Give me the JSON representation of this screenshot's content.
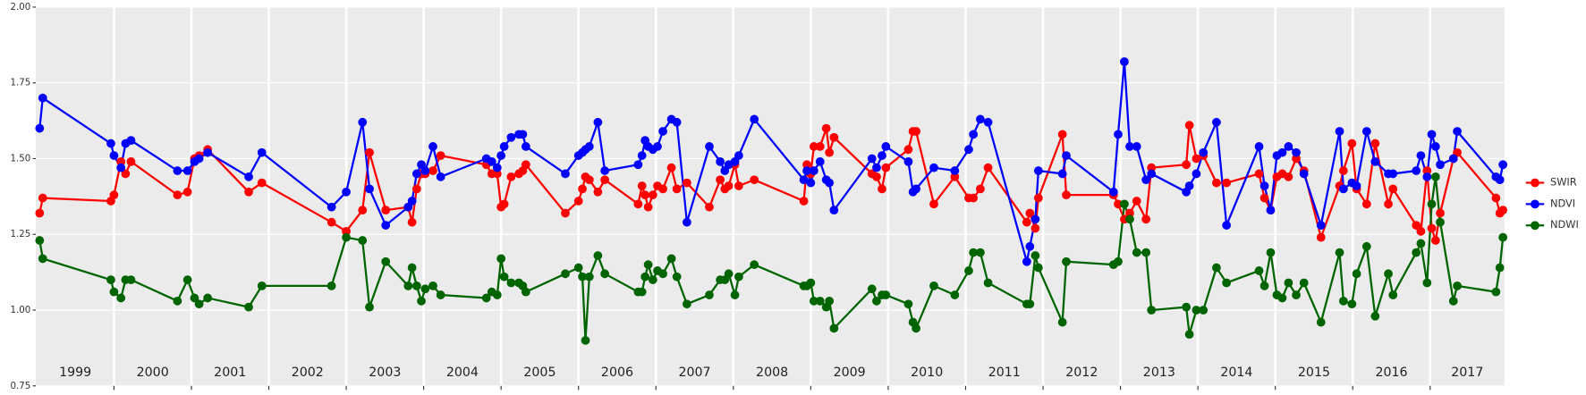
{
  "chart_data": {
    "type": "line",
    "x": [
      1999.04,
      1999.08,
      1999.96,
      2000.0,
      2000.09,
      2000.15,
      2000.22,
      2000.82,
      2000.95,
      2001.04,
      2001.1,
      2001.21,
      2001.74,
      2001.91,
      2002.81,
      2003.0,
      2003.21,
      2003.3,
      2003.51,
      2003.8,
      2003.85,
      2003.91,
      2003.97,
      2004.02,
      2004.12,
      2004.22,
      2004.81,
      2004.88,
      2004.95,
      2005.0,
      2005.04,
      2005.13,
      2005.23,
      2005.28,
      2005.32,
      2005.83,
      2006.0,
      2006.05,
      2006.09,
      2006.14,
      2006.25,
      2006.34,
      2006.77,
      2006.82,
      2006.86,
      2006.9,
      2006.96,
      2007.02,
      2007.09,
      2007.2,
      2007.27,
      2007.4,
      2007.69,
      2007.83,
      2007.89,
      2007.94,
      2008.02,
      2008.07,
      2008.27,
      2008.91,
      2008.95,
      2009.0,
      2009.04,
      2009.12,
      2009.2,
      2009.24,
      2009.3,
      2009.79,
      2009.85,
      2009.92,
      2009.97,
      2010.26,
      2010.32,
      2010.36,
      2010.59,
      2010.86,
      2011.04,
      2011.1,
      2011.19,
      2011.29,
      2011.79,
      2011.83,
      2011.9,
      2011.94,
      2012.25,
      2012.3,
      2012.91,
      2012.97,
      2013.05,
      2013.12,
      2013.21,
      2013.33,
      2013.4,
      2013.85,
      2013.89,
      2013.98,
      2014.07,
      2014.24,
      2014.37,
      2014.79,
      2014.86,
      2014.94,
      2015.02,
      2015.09,
      2015.17,
      2015.27,
      2015.37,
      2015.59,
      2015.83,
      2015.88,
      2015.99,
      2016.05,
      2016.18,
      2016.29,
      2016.46,
      2016.52,
      2016.82,
      2016.88,
      2016.96,
      2017.02,
      2017.07,
      2017.13,
      2017.3,
      2017.35,
      2017.85,
      2017.9,
      2017.94
    ],
    "series": [
      {
        "name": "SWIR",
        "color": "#ff0000",
        "values": [
          1.32,
          1.37,
          1.36,
          1.38,
          1.49,
          1.45,
          1.49,
          1.38,
          1.39,
          1.5,
          1.51,
          1.53,
          1.39,
          1.42,
          1.29,
          1.26,
          1.33,
          1.52,
          1.33,
          1.34,
          1.29,
          1.4,
          1.45,
          1.45,
          1.46,
          1.51,
          1.48,
          1.45,
          1.45,
          1.34,
          1.35,
          1.44,
          1.45,
          1.46,
          1.48,
          1.32,
          1.36,
          1.4,
          1.44,
          1.43,
          1.39,
          1.43,
          1.35,
          1.41,
          1.38,
          1.34,
          1.38,
          1.41,
          1.4,
          1.47,
          1.4,
          1.42,
          1.34,
          1.43,
          1.4,
          1.41,
          1.48,
          1.41,
          1.43,
          1.36,
          1.48,
          1.45,
          1.54,
          1.54,
          1.6,
          1.52,
          1.57,
          1.45,
          1.44,
          1.4,
          1.47,
          1.53,
          1.59,
          1.59,
          1.35,
          1.44,
          1.37,
          1.37,
          1.4,
          1.47,
          1.29,
          1.32,
          1.27,
          1.37,
          1.58,
          1.38,
          1.38,
          1.35,
          1.3,
          1.32,
          1.36,
          1.3,
          1.47,
          1.48,
          1.61,
          1.5,
          1.51,
          1.42,
          1.42,
          1.45,
          1.37,
          1.33,
          1.44,
          1.45,
          1.44,
          1.5,
          1.46,
          1.24,
          1.41,
          1.46,
          1.55,
          1.4,
          1.35,
          1.55,
          1.35,
          1.4,
          1.28,
          1.26,
          1.46,
          1.27,
          1.23,
          1.32,
          1.5,
          1.52,
          1.37,
          1.32,
          1.33
        ]
      },
      {
        "name": "NDVI",
        "color": "#0000ff",
        "values": [
          1.6,
          1.7,
          1.55,
          1.51,
          1.47,
          1.55,
          1.56,
          1.46,
          1.46,
          1.49,
          1.5,
          1.52,
          1.44,
          1.52,
          1.34,
          1.39,
          1.62,
          1.4,
          1.28,
          1.34,
          1.36,
          1.45,
          1.48,
          1.46,
          1.54,
          1.44,
          1.5,
          1.49,
          1.47,
          1.51,
          1.54,
          1.57,
          1.58,
          1.58,
          1.54,
          1.45,
          1.51,
          1.52,
          1.53,
          1.54,
          1.62,
          1.46,
          1.48,
          1.51,
          1.56,
          1.54,
          1.53,
          1.54,
          1.59,
          1.63,
          1.62,
          1.29,
          1.54,
          1.49,
          1.46,
          1.48,
          1.49,
          1.51,
          1.63,
          1.43,
          1.46,
          1.42,
          1.46,
          1.49,
          1.43,
          1.42,
          1.33,
          1.5,
          1.47,
          1.51,
          1.54,
          1.49,
          1.39,
          1.4,
          1.47,
          1.46,
          1.53,
          1.58,
          1.63,
          1.62,
          1.16,
          1.21,
          1.3,
          1.46,
          1.45,
          1.51,
          1.39,
          1.58,
          1.82,
          1.54,
          1.54,
          1.43,
          1.45,
          1.39,
          1.41,
          1.45,
          1.52,
          1.62,
          1.28,
          1.54,
          1.41,
          1.33,
          1.51,
          1.52,
          1.54,
          1.52,
          1.45,
          1.28,
          1.59,
          1.4,
          1.42,
          1.41,
          1.59,
          1.49,
          1.45,
          1.45,
          1.46,
          1.51,
          1.44,
          1.58,
          1.54,
          1.48,
          1.5,
          1.59,
          1.44,
          1.43,
          1.48
        ]
      },
      {
        "name": "NDWI",
        "color": "#006400",
        "values": [
          1.23,
          1.17,
          1.1,
          1.06,
          1.04,
          1.1,
          1.1,
          1.03,
          1.1,
          1.04,
          1.02,
          1.04,
          1.01,
          1.08,
          1.08,
          1.24,
          1.23,
          1.01,
          1.16,
          1.08,
          1.14,
          1.08,
          1.03,
          1.07,
          1.08,
          1.05,
          1.04,
          1.06,
          1.05,
          1.17,
          1.11,
          1.09,
          1.09,
          1.08,
          1.06,
          1.12,
          1.14,
          1.11,
          0.9,
          1.11,
          1.18,
          1.12,
          1.06,
          1.06,
          1.11,
          1.15,
          1.1,
          1.13,
          1.12,
          1.17,
          1.11,
          1.02,
          1.05,
          1.1,
          1.1,
          1.12,
          1.05,
          1.11,
          1.15,
          1.08,
          1.08,
          1.09,
          1.03,
          1.03,
          1.01,
          1.03,
          0.94,
          1.07,
          1.03,
          1.05,
          1.05,
          1.02,
          0.96,
          0.94,
          1.08,
          1.05,
          1.13,
          1.19,
          1.19,
          1.09,
          1.02,
          1.02,
          1.18,
          1.14,
          0.96,
          1.16,
          1.15,
          1.16,
          1.35,
          1.3,
          1.19,
          1.19,
          1.0,
          1.01,
          0.92,
          1.0,
          1.0,
          1.14,
          1.09,
          1.13,
          1.08,
          1.19,
          1.05,
          1.04,
          1.09,
          1.05,
          1.09,
          0.96,
          1.19,
          1.03,
          1.02,
          1.12,
          1.21,
          0.98,
          1.12,
          1.05,
          1.19,
          1.22,
          1.09,
          1.35,
          1.44,
          1.29,
          1.03,
          1.08,
          1.06,
          1.14,
          1.24
        ]
      }
    ],
    "xlim": [
      1998.99,
      2017.96
    ],
    "xticks": [
      2000,
      2001,
      2002,
      2003,
      2004,
      2005,
      2006,
      2007,
      2008,
      2009,
      2010,
      2011,
      2012,
      2013,
      2014,
      2015,
      2016,
      2017
    ],
    "year_labels": [
      "1999",
      "2000",
      "2001",
      "2002",
      "2003",
      "2004",
      "2005",
      "2006",
      "2007",
      "2008",
      "2009",
      "2010",
      "2011",
      "2012",
      "2013",
      "2014",
      "2015",
      "2016",
      "2017"
    ],
    "ylim": [
      0.75,
      2.0
    ],
    "yticks": [
      0.75,
      {
        "value": 1.0,
        "label": "1.00"
      },
      1.25,
      {
        "value": 1.5,
        "label": "1.50"
      },
      1.75,
      {
        "value": 2.0,
        "label": "2.00"
      }
    ],
    "grid": true,
    "legend": "right"
  }
}
